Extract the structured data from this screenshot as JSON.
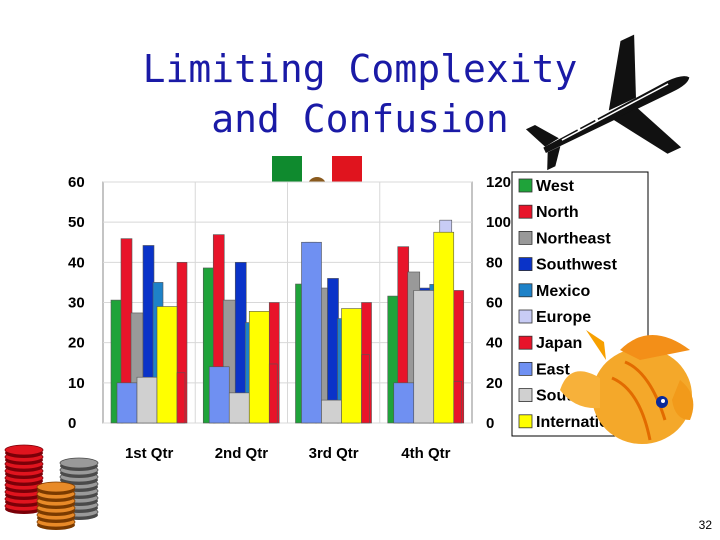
{
  "slide": {
    "title_line1": "Limiting Complexity",
    "title_line2": "and Confusion",
    "page_number": "32",
    "icons": [
      "airplane-icon",
      "mexico-flag-icon",
      "fish-icon",
      "coin-stacks-icon"
    ]
  },
  "chart_data": {
    "type": "bar",
    "categories": [
      "1st Qtr",
      "2nd Qtr",
      "3rd Qtr",
      "4th Qtr"
    ],
    "y_left": {
      "ticks": [
        "0",
        "10",
        "20",
        "30",
        "40",
        "50",
        "60"
      ],
      "ylim": [
        0,
        60
      ]
    },
    "y_right": {
      "ticks": [
        "0",
        "20",
        "40",
        "60",
        "80",
        "100",
        "120"
      ],
      "ylim": [
        0,
        120
      ]
    },
    "grid": true,
    "legend_position": "right",
    "series": [
      {
        "name": "West",
        "color": "#1fa33a",
        "axis": "left",
        "values": [
          30.6,
          38.6,
          34.6,
          31.6
        ]
      },
      {
        "name": "North",
        "color": "#e8142a",
        "axis": "left",
        "values": [
          45.9,
          46.9,
          45,
          43.9
        ]
      },
      {
        "name": "Northeast",
        "color": "#999999",
        "axis": "left",
        "values": [
          27.4,
          30.6,
          33.6,
          37.6
        ]
      },
      {
        "name": "Southwest",
        "color": "#0a33c8",
        "axis": "left",
        "values": [
          44.2,
          40,
          36,
          33.6
        ]
      },
      {
        "name": "Mexico",
        "color": "#1e82c8",
        "axis": "left",
        "values": [
          35,
          25,
          26,
          34.5
        ]
      },
      {
        "name": "Europe",
        "color": "#c8ccf5",
        "axis": "right",
        "values": [
          30,
          26,
          30,
          101
        ]
      },
      {
        "name": "Japan",
        "color": "#e8142a",
        "axis": "left",
        "values": [
          40,
          30,
          30,
          33
        ]
      },
      {
        "name": "East",
        "color": "#6f90f2",
        "axis": "left",
        "values": [
          10,
          14,
          45,
          10
        ]
      },
      {
        "name": "South",
        "color": "#d0d0d0",
        "axis": "left",
        "values": [
          11.4,
          7.5,
          5.7,
          33
        ]
      },
      {
        "name": "International",
        "color": "#ffff00",
        "axis": "left",
        "values": [
          29,
          27.8,
          28.5,
          47.5
        ]
      },
      {
        "name": "",
        "color": "#e8142a",
        "axis": "left",
        "values": [
          12.5,
          14.7,
          17,
          10.4
        ]
      }
    ]
  }
}
